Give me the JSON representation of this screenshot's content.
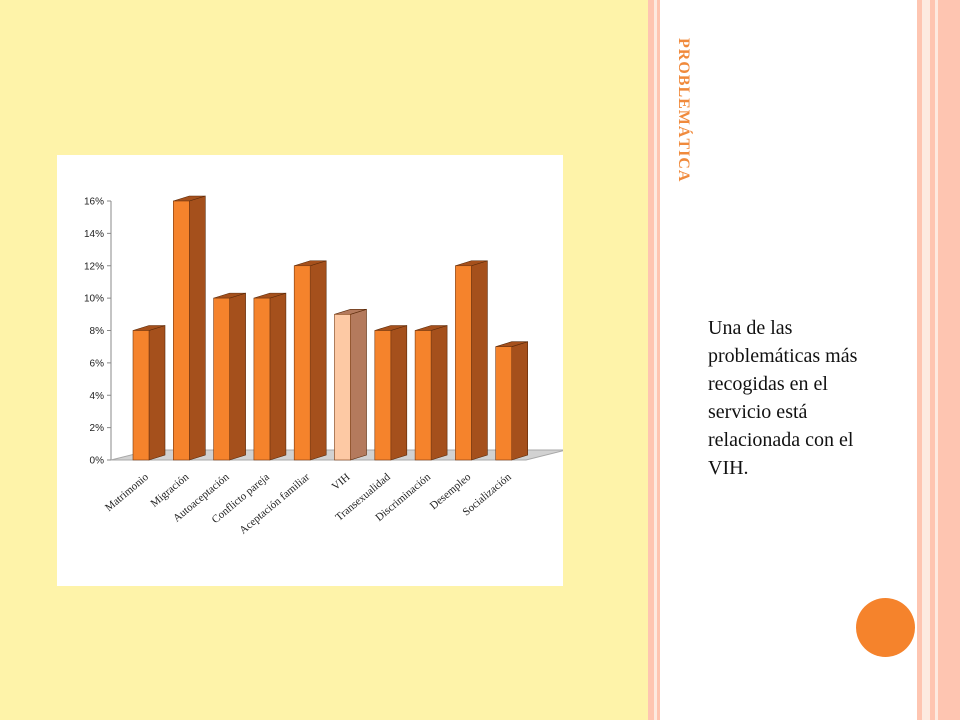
{
  "slide": {
    "title": "PROBLEMÁTICA",
    "body_text": "Una de las problemáticas más recogidas en el servicio está relacionada con el VIH."
  },
  "colors": {
    "left_background": "#fef3a9",
    "bar_front": "#f5832c",
    "bar_side": "#a5501c",
    "bar_highlight_front": "#fdc9a4",
    "bar_highlight_side": "#b47a5d",
    "title_color": "#f08a3c",
    "accent_dot": "#f5832c",
    "stripe_pink": "#fec5b1",
    "stripe_light": "#fdeae0"
  },
  "chart_data": {
    "type": "bar",
    "style": "3d",
    "categories": [
      "Matrimonio",
      "Migración",
      "Autoaceptación",
      "Conflicto pareja",
      "Aceptación familiar",
      "VIH",
      "Transexualidad",
      "Discriminación",
      "Desempleo",
      "Socialización"
    ],
    "values": [
      8,
      16,
      10,
      10,
      12,
      9,
      8,
      8,
      12,
      7
    ],
    "highlight_index": 5,
    "y_ticks": [
      "0%",
      "2%",
      "4%",
      "6%",
      "8%",
      "10%",
      "12%",
      "14%",
      "16%"
    ],
    "ylim": [
      0,
      16
    ],
    "grid": false,
    "legend": "none"
  }
}
